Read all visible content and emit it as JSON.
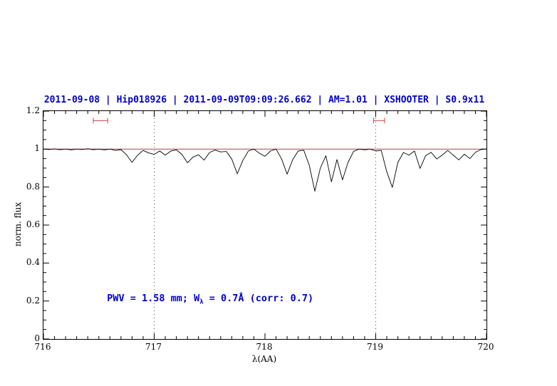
{
  "chart_data": {
    "type": "line",
    "title": "2011-09-08 | Hip018926 | 2011-09-09T09:09:26.662 | AM=1.01 | XSHOOTER | S0.9x11",
    "xlabel": "λ(AA)",
    "ylabel": "norm. flux",
    "xlim": [
      716,
      720
    ],
    "ylim": [
      0,
      1.2
    ],
    "xticks": [
      716,
      717,
      718,
      719,
      720
    ],
    "xtick_labels": [
      "716",
      "717",
      "718",
      "719",
      "720"
    ],
    "yticks": [
      0,
      0.2,
      0.4,
      0.6,
      0.8,
      1,
      1.2
    ],
    "ytick_labels": [
      "0",
      "0.2",
      "0.4",
      "0.6",
      "0.8",
      "1",
      "1.2"
    ],
    "minor_x_step": 0.1,
    "minor_y_step": 0.05,
    "grid": false,
    "guide_lines_x": [
      717,
      719
    ],
    "guide_line_color": "#444444",
    "continuum_y": 1.0,
    "continuum_color": "#bb2222",
    "title_color": "#0000cc",
    "annotation": {
      "text_prefix": "PWV = 1.58 mm; W",
      "text_sub": "λ",
      "text_suffix": " = 0.7Å (corr: 0.7)",
      "color": "#0000cc",
      "x": 716.58,
      "y": 0.21
    },
    "range_markers": [
      {
        "x1": 716.45,
        "x2": 716.58,
        "y": 1.15,
        "color": "#cc4444"
      },
      {
        "x1": 718.98,
        "x2": 719.08,
        "y": 1.15,
        "color": "#cc4444"
      }
    ],
    "series": [
      {
        "name": "telluric spectrum",
        "color": "#000000",
        "points": [
          [
            716.0,
            1.0
          ],
          [
            716.05,
            0.998
          ],
          [
            716.1,
            1.001
          ],
          [
            716.15,
            0.997
          ],
          [
            716.2,
            1.0
          ],
          [
            716.25,
            0.996
          ],
          [
            716.3,
            1.0
          ],
          [
            716.35,
            0.998
          ],
          [
            716.4,
            1.002
          ],
          [
            716.45,
            0.997
          ],
          [
            716.5,
            1.0
          ],
          [
            716.55,
            0.996
          ],
          [
            716.6,
            1.0
          ],
          [
            716.65,
            0.993
          ],
          [
            716.7,
            0.997
          ],
          [
            716.75,
            0.97
          ],
          [
            716.8,
            0.93
          ],
          [
            716.85,
            0.968
          ],
          [
            716.9,
            0.993
          ],
          [
            716.95,
            0.98
          ],
          [
            717.0,
            0.972
          ],
          [
            717.05,
            0.99
          ],
          [
            717.1,
            0.968
          ],
          [
            717.15,
            0.99
          ],
          [
            717.2,
            0.996
          ],
          [
            717.25,
            0.972
          ],
          [
            717.3,
            0.928
          ],
          [
            717.35,
            0.958
          ],
          [
            717.4,
            0.97
          ],
          [
            717.45,
            0.942
          ],
          [
            717.5,
            0.982
          ],
          [
            717.55,
            0.995
          ],
          [
            717.6,
            0.985
          ],
          [
            717.65,
            0.988
          ],
          [
            717.7,
            0.948
          ],
          [
            717.75,
            0.87
          ],
          [
            717.8,
            0.94
          ],
          [
            717.85,
            0.99
          ],
          [
            717.9,
            1.0
          ],
          [
            717.95,
            0.978
          ],
          [
            718.0,
            0.962
          ],
          [
            718.05,
            0.99
          ],
          [
            718.1,
            1.0
          ],
          [
            718.15,
            0.948
          ],
          [
            718.2,
            0.868
          ],
          [
            718.25,
            0.944
          ],
          [
            718.3,
            0.99
          ],
          [
            718.35,
            0.994
          ],
          [
            718.4,
            0.915
          ],
          [
            718.45,
            0.778
          ],
          [
            718.5,
            0.9
          ],
          [
            718.55,
            0.965
          ],
          [
            718.6,
            0.828
          ],
          [
            718.65,
            0.945
          ],
          [
            718.7,
            0.838
          ],
          [
            718.75,
            0.93
          ],
          [
            718.8,
            0.988
          ],
          [
            718.85,
            1.0
          ],
          [
            718.9,
            0.996
          ],
          [
            718.95,
            1.0
          ],
          [
            719.0,
            0.99
          ],
          [
            719.05,
            0.993
          ],
          [
            719.1,
            0.88
          ],
          [
            719.15,
            0.798
          ],
          [
            719.2,
            0.93
          ],
          [
            719.25,
            0.982
          ],
          [
            719.3,
            0.968
          ],
          [
            719.35,
            0.99
          ],
          [
            719.4,
            0.898
          ],
          [
            719.45,
            0.965
          ],
          [
            719.5,
            0.983
          ],
          [
            719.55,
            0.948
          ],
          [
            719.6,
            0.968
          ],
          [
            719.65,
            0.993
          ],
          [
            719.7,
            0.968
          ],
          [
            719.75,
            0.943
          ],
          [
            719.8,
            0.973
          ],
          [
            719.85,
            0.95
          ],
          [
            719.9,
            0.983
          ],
          [
            719.95,
            0.998
          ],
          [
            720.0,
            1.0
          ]
        ]
      }
    ]
  }
}
